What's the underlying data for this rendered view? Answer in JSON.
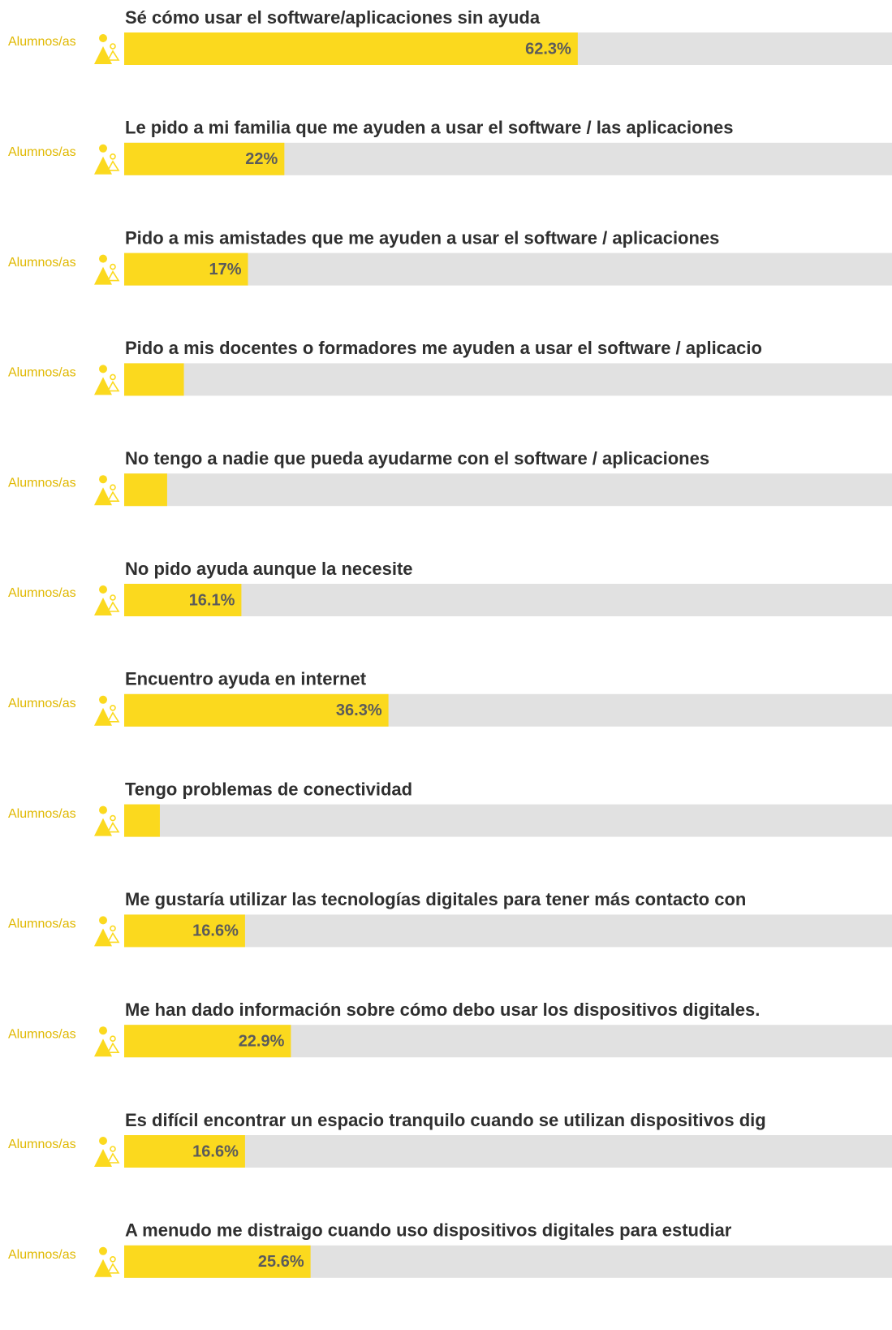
{
  "chart_data": {
    "type": "bar",
    "group_label": "Alumnos/as",
    "categories": [
      "Sé cómo usar el software/aplicaciones sin ayuda",
      "Le pido a mi familia que me ayuden a usar el software / las aplicaciones",
      "Pido a mis amistades que me ayuden a usar el software / aplicaciones",
      "Pido a mis docentes o formadores me ayuden a usar el software / aplicacio",
      "No tengo a nadie que pueda ayudarme con el software / aplicaciones",
      "No pido ayuda aunque la necesite",
      "Encuentro ayuda en internet",
      "Tengo problemas de conectividad",
      "Me gustaría utilizar las tecnologías digitales para tener más contacto con",
      "Me han dado información sobre cómo debo usar los dispositivos digitales.",
      "Es difícil encontrar un espacio tranquilo cuando se utilizan dispositivos dig",
      "A menudo me distraigo cuando uso dispositivos digitales para estudiar"
    ],
    "values": [
      62.3,
      22,
      17,
      8.2,
      5.9,
      16.1,
      36.3,
      4.9,
      16.6,
      22.9,
      16.6,
      25.6
    ],
    "value_labels": [
      "62.3%",
      "22%",
      "17%",
      null,
      null,
      "16.1%",
      "36.3%",
      null,
      "16.6%",
      "22.9%",
      "16.6%",
      "25.6%"
    ],
    "color": "#fbd91e",
    "track_color": "#e1e1e1",
    "xlim": [
      0,
      100
    ]
  }
}
